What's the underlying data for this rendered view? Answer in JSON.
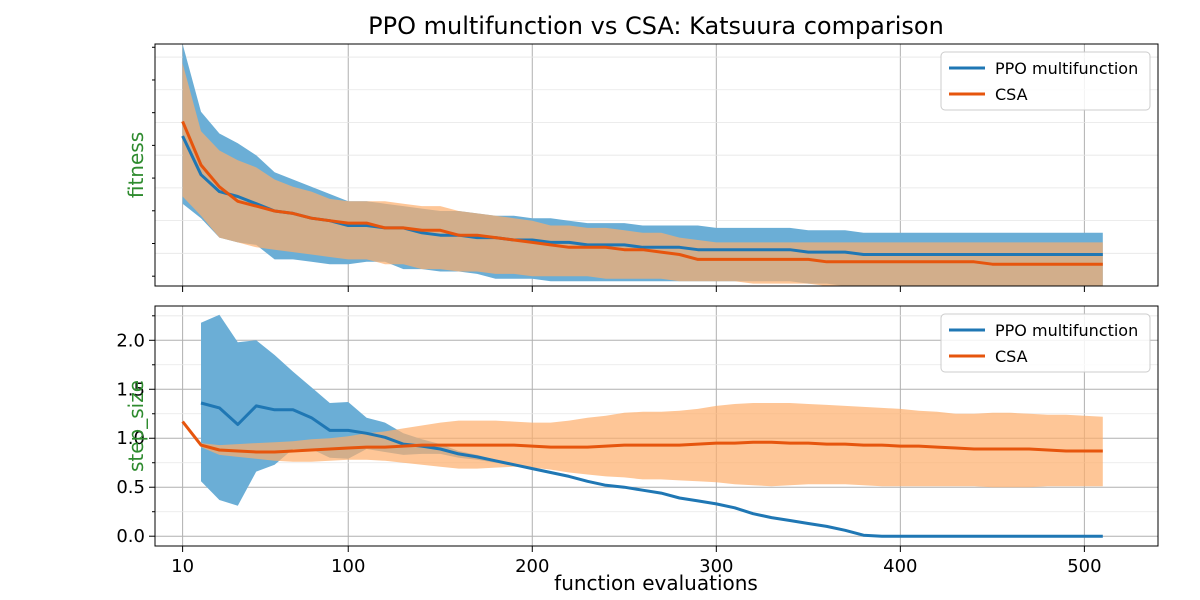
{
  "figure_title": "PPO multifunction vs CSA: Katsuura comparison",
  "xlabel": "function evaluations",
  "chart_data": [
    {
      "type": "line",
      "title": "PPO multifunction vs CSA: Katsuura comparison",
      "ylabel": "fitness",
      "xlabel": "",
      "xlim": [
        -5,
        540
      ],
      "ylim": [
        0,
        1
      ],
      "y_scale": "unlabeled (no tick labels shown)",
      "grid": true,
      "legend_position": "top-right",
      "x_ticks": [
        10,
        100,
        200,
        300,
        400,
        500
      ],
      "x_tick_labels": [
        "",
        "",
        "",
        "",
        "",
        ""
      ],
      "y_ticks": [],
      "y_tick_labels": [],
      "x": [
        10,
        20,
        30,
        40,
        50,
        60,
        70,
        80,
        90,
        100,
        110,
        120,
        130,
        140,
        150,
        160,
        170,
        180,
        190,
        200,
        210,
        220,
        230,
        240,
        250,
        260,
        270,
        280,
        290,
        300,
        310,
        320,
        330,
        340,
        350,
        360,
        370,
        380,
        390,
        400,
        410,
        420,
        430,
        440,
        450,
        460,
        470,
        480,
        490,
        500,
        510
      ],
      "series": [
        {
          "name": "PPO multifunction",
          "color": "#1f77b4",
          "band_color": "#6baed6",
          "x": [
            10,
            20,
            30,
            40,
            50,
            60,
            70,
            80,
            90,
            100,
            110,
            120,
            130,
            140,
            150,
            160,
            170,
            180,
            190,
            200,
            210,
            220,
            230,
            240,
            250,
            260,
            270,
            280,
            290,
            300,
            310,
            320,
            330,
            340,
            350,
            360,
            370,
            380,
            390,
            400,
            410,
            420,
            430,
            440,
            450,
            460,
            470,
            480,
            490,
            500,
            510
          ],
          "mean": [
            0.62,
            0.46,
            0.39,
            0.37,
            0.34,
            0.31,
            0.3,
            0.28,
            0.27,
            0.25,
            0.25,
            0.24,
            0.24,
            0.22,
            0.21,
            0.21,
            0.2,
            0.2,
            0.19,
            0.19,
            0.18,
            0.18,
            0.17,
            0.17,
            0.17,
            0.16,
            0.16,
            0.16,
            0.15,
            0.15,
            0.15,
            0.15,
            0.15,
            0.15,
            0.14,
            0.14,
            0.14,
            0.13,
            0.13,
            0.13,
            0.13,
            0.13,
            0.13,
            0.13,
            0.13,
            0.13,
            0.13,
            0.13,
            0.13,
            0.13,
            0.13
          ],
          "upper": [
            1.0,
            0.72,
            0.63,
            0.59,
            0.54,
            0.47,
            0.44,
            0.41,
            0.38,
            0.35,
            0.35,
            0.34,
            0.33,
            0.32,
            0.31,
            0.31,
            0.3,
            0.29,
            0.29,
            0.28,
            0.28,
            0.27,
            0.26,
            0.26,
            0.26,
            0.25,
            0.25,
            0.25,
            0.25,
            0.24,
            0.24,
            0.24,
            0.24,
            0.24,
            0.23,
            0.23,
            0.23,
            0.22,
            0.22,
            0.22,
            0.22,
            0.22,
            0.22,
            0.22,
            0.22,
            0.22,
            0.22,
            0.22,
            0.22,
            0.22,
            0.22
          ],
          "lower": [
            0.34,
            0.28,
            0.2,
            0.18,
            0.17,
            0.11,
            0.11,
            0.1,
            0.09,
            0.09,
            0.1,
            0.1,
            0.07,
            0.07,
            0.06,
            0.06,
            0.05,
            0.03,
            0.03,
            0.03,
            0.02,
            0.02,
            0.02,
            0.02,
            0.02,
            0.02,
            0.02,
            0.02,
            0.02,
            0.02,
            0.02,
            0.02,
            0.02,
            0.02,
            0.01,
            0.01,
            0.0,
            -0.01,
            -0.02,
            -0.02,
            -0.02,
            -0.02,
            -0.02,
            -0.02,
            -0.02,
            -0.02,
            -0.02,
            -0.02,
            -0.02,
            -0.02,
            -0.02
          ]
        },
        {
          "name": "CSA",
          "color": "#e6550d",
          "band_color": "#fdae6b",
          "x": [
            10,
            20,
            30,
            40,
            50,
            60,
            70,
            80,
            90,
            100,
            110,
            120,
            130,
            140,
            150,
            160,
            170,
            180,
            190,
            200,
            210,
            220,
            230,
            240,
            250,
            260,
            270,
            280,
            290,
            300,
            310,
            320,
            330,
            340,
            350,
            360,
            370,
            380,
            390,
            400,
            410,
            420,
            430,
            440,
            450,
            460,
            470,
            480,
            490,
            500,
            510
          ],
          "mean": [
            0.68,
            0.5,
            0.41,
            0.35,
            0.33,
            0.31,
            0.3,
            0.28,
            0.27,
            0.26,
            0.26,
            0.24,
            0.24,
            0.23,
            0.23,
            0.21,
            0.21,
            0.2,
            0.19,
            0.18,
            0.17,
            0.16,
            0.16,
            0.16,
            0.15,
            0.15,
            0.14,
            0.13,
            0.11,
            0.11,
            0.11,
            0.11,
            0.11,
            0.11,
            0.11,
            0.1,
            0.1,
            0.1,
            0.1,
            0.1,
            0.1,
            0.1,
            0.1,
            0.1,
            0.09,
            0.09,
            0.09,
            0.09,
            0.09,
            0.09,
            0.09
          ],
          "upper": [
            0.92,
            0.64,
            0.56,
            0.52,
            0.49,
            0.44,
            0.41,
            0.39,
            0.36,
            0.35,
            0.35,
            0.35,
            0.34,
            0.33,
            0.33,
            0.31,
            0.3,
            0.29,
            0.28,
            0.27,
            0.25,
            0.25,
            0.24,
            0.24,
            0.23,
            0.22,
            0.22,
            0.2,
            0.19,
            0.18,
            0.18,
            0.18,
            0.18,
            0.18,
            0.18,
            0.18,
            0.18,
            0.18,
            0.18,
            0.18,
            0.18,
            0.18,
            0.18,
            0.18,
            0.18,
            0.18,
            0.18,
            0.18,
            0.18,
            0.18,
            0.18
          ],
          "lower": [
            0.37,
            0.29,
            0.2,
            0.18,
            0.16,
            0.15,
            0.14,
            0.13,
            0.12,
            0.11,
            0.11,
            0.09,
            0.09,
            0.07,
            0.07,
            0.06,
            0.06,
            0.05,
            0.05,
            0.04,
            0.04,
            0.04,
            0.04,
            0.03,
            0.03,
            0.03,
            0.03,
            0.02,
            0.02,
            0.02,
            0.02,
            0.01,
            0.01,
            0.01,
            0.01,
            0.0,
            0.0,
            0.0,
            0.0,
            0.0,
            0.0,
            0.0,
            0.0,
            0.0,
            0.0,
            0.0,
            0.0,
            0.0,
            0.0,
            0.0,
            0.0
          ]
        }
      ]
    },
    {
      "type": "line",
      "title": "",
      "ylabel": "step_size",
      "xlabel": "function evaluations",
      "xlim": [
        -5,
        540
      ],
      "ylim": [
        -0.1,
        2.35
      ],
      "grid": true,
      "legend_position": "top-right",
      "x_ticks": [
        10,
        100,
        200,
        300,
        400,
        500
      ],
      "x_tick_labels": [
        "10",
        "100",
        "200",
        "300",
        "400",
        "500"
      ],
      "y_ticks": [
        0.0,
        0.5,
        1.0,
        1.5,
        2.0
      ],
      "y_tick_labels": [
        "0.0",
        "0.5",
        "1.0",
        "1.5",
        "2.0"
      ],
      "series": [
        {
          "name": "PPO multifunction",
          "color": "#1f77b4",
          "band_color": "#6baed6",
          "x": [
            20,
            30,
            40,
            50,
            60,
            70,
            80,
            90,
            100,
            110,
            120,
            130,
            140,
            150,
            160,
            170,
            180,
            190,
            200,
            210,
            220,
            230,
            240,
            250,
            260,
            270,
            280,
            290,
            300,
            310,
            320,
            330,
            340,
            350,
            360,
            370,
            380,
            390,
            400,
            410,
            420,
            430,
            440,
            450,
            460,
            470,
            480,
            490,
            500,
            510
          ],
          "mean": [
            1.36,
            1.31,
            1.14,
            1.33,
            1.29,
            1.29,
            1.21,
            1.08,
            1.08,
            1.05,
            1.01,
            0.94,
            0.92,
            0.89,
            0.84,
            0.81,
            0.77,
            0.73,
            0.69,
            0.65,
            0.61,
            0.56,
            0.52,
            0.5,
            0.47,
            0.44,
            0.39,
            0.36,
            0.33,
            0.29,
            0.23,
            0.19,
            0.16,
            0.13,
            0.1,
            0.06,
            0.01,
            0.0,
            0.0,
            0.0,
            0.0,
            0.0,
            0.0,
            0.0,
            0.0,
            0.0,
            0.0,
            0.0,
            0.0,
            0.0
          ],
          "upper": [
            2.18,
            2.26,
            1.98,
            2.0,
            1.85,
            1.68,
            1.52,
            1.36,
            1.37,
            1.21,
            1.16,
            1.05,
            0.99,
            0.94,
            0.87,
            0.83,
            0.78,
            0.74,
            0.7,
            0.66,
            0.62,
            0.57,
            0.53,
            0.51,
            0.48,
            0.45,
            0.4,
            0.37,
            0.34,
            0.3,
            0.24,
            0.2,
            0.17,
            0.14,
            0.11,
            0.07,
            0.02,
            0.0,
            0.0,
            0.0,
            0.0,
            0.0,
            0.0,
            0.0,
            0.0,
            0.0,
            0.0,
            0.0,
            0.0,
            0.0
          ],
          "lower": [
            0.56,
            0.37,
            0.31,
            0.66,
            0.73,
            0.89,
            0.89,
            0.8,
            0.79,
            0.89,
            0.86,
            0.83,
            0.84,
            0.84,
            0.8,
            0.78,
            0.75,
            0.72,
            0.68,
            0.64,
            0.6,
            0.55,
            0.51,
            0.49,
            0.46,
            0.43,
            0.38,
            0.35,
            0.32,
            0.28,
            0.22,
            0.18,
            0.15,
            0.12,
            0.09,
            0.05,
            0.0,
            0.0,
            0.0,
            0.0,
            0.0,
            0.0,
            0.0,
            0.0,
            0.0,
            0.0,
            0.0,
            0.0,
            0.0,
            0.0
          ]
        },
        {
          "name": "CSA",
          "color": "#e6550d",
          "band_color": "#fdae6b",
          "x": [
            10,
            20,
            30,
            40,
            50,
            60,
            70,
            80,
            90,
            100,
            110,
            120,
            130,
            140,
            150,
            160,
            170,
            180,
            190,
            200,
            210,
            220,
            230,
            240,
            250,
            260,
            270,
            280,
            290,
            300,
            310,
            320,
            330,
            340,
            350,
            360,
            370,
            380,
            390,
            400,
            410,
            420,
            430,
            440,
            450,
            460,
            470,
            480,
            490,
            500,
            510
          ],
          "mean": [
            1.17,
            0.93,
            0.88,
            0.87,
            0.86,
            0.86,
            0.87,
            0.88,
            0.89,
            0.9,
            0.91,
            0.91,
            0.92,
            0.93,
            0.93,
            0.93,
            0.93,
            0.93,
            0.93,
            0.92,
            0.91,
            0.91,
            0.91,
            0.92,
            0.93,
            0.93,
            0.93,
            0.93,
            0.94,
            0.95,
            0.95,
            0.96,
            0.96,
            0.95,
            0.95,
            0.94,
            0.94,
            0.93,
            0.93,
            0.92,
            0.92,
            0.91,
            0.9,
            0.89,
            0.89,
            0.89,
            0.89,
            0.88,
            0.87,
            0.87,
            0.87
          ],
          "upper": [
            1.17,
            0.95,
            0.93,
            0.94,
            0.95,
            0.96,
            0.97,
            0.99,
            1.0,
            1.02,
            1.05,
            1.07,
            1.1,
            1.13,
            1.16,
            1.18,
            1.18,
            1.18,
            1.17,
            1.16,
            1.16,
            1.18,
            1.21,
            1.23,
            1.26,
            1.27,
            1.27,
            1.28,
            1.3,
            1.33,
            1.35,
            1.36,
            1.36,
            1.36,
            1.35,
            1.34,
            1.33,
            1.32,
            1.31,
            1.3,
            1.28,
            1.27,
            1.25,
            1.25,
            1.26,
            1.26,
            1.25,
            1.24,
            1.24,
            1.23,
            1.22
          ],
          "lower": [
            1.17,
            0.91,
            0.83,
            0.81,
            0.79,
            0.77,
            0.76,
            0.76,
            0.77,
            0.78,
            0.78,
            0.77,
            0.75,
            0.73,
            0.71,
            0.69,
            0.69,
            0.7,
            0.71,
            0.7,
            0.68,
            0.65,
            0.63,
            0.61,
            0.6,
            0.58,
            0.58,
            0.57,
            0.56,
            0.55,
            0.53,
            0.52,
            0.51,
            0.52,
            0.53,
            0.53,
            0.53,
            0.52,
            0.51,
            0.51,
            0.51,
            0.51,
            0.51,
            0.51,
            0.5,
            0.5,
            0.5,
            0.51,
            0.51,
            0.51,
            0.51
          ]
        }
      ]
    }
  ]
}
